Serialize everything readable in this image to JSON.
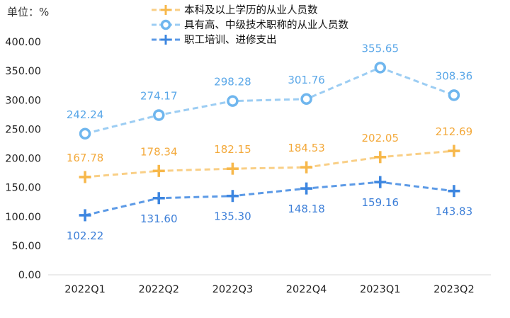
{
  "chart_data": {
    "type": "line",
    "unit_label": "单位：%",
    "categories": [
      "2022Q1",
      "2022Q2",
      "2022Q3",
      "2022Q4",
      "2023Q1",
      "2023Q2"
    ],
    "ylim": [
      0,
      400
    ],
    "yticks": [
      "0.00",
      "50.00",
      "100.00",
      "150.00",
      "200.00",
      "250.00",
      "300.00",
      "350.00",
      "400.00"
    ],
    "grid": false,
    "legend_position": "top-center",
    "series": [
      {
        "name": "本科及以上学历的从业人员数",
        "marker": "plus",
        "color": "#F7B84B",
        "line_color": "#F9CF86",
        "label_color": "#F3A93B",
        "label_position": "above",
        "values": [
          167.78,
          178.34,
          182.15,
          184.53,
          202.05,
          212.69
        ],
        "labels": [
          "167.78",
          "178.34",
          "182.15",
          "184.53",
          "202.05",
          "212.69"
        ]
      },
      {
        "name": "具有高、中级技术职称的从业人员数",
        "marker": "circle",
        "color": "#6FB6EE",
        "line_color": "#9CCDF3",
        "label_color": "#5AA7E8",
        "label_position": "above",
        "values": [
          242.24,
          274.17,
          298.28,
          301.76,
          355.65,
          308.36
        ],
        "labels": [
          "242.24",
          "274.17",
          "298.28",
          "301.76",
          "355.65",
          "308.36"
        ]
      },
      {
        "name": "职工培训、进修支出",
        "marker": "plus",
        "color": "#3D86E0",
        "line_color": "#5C9AE6",
        "label_color": "#3D7FD8",
        "label_position": "below",
        "values": [
          102.22,
          131.6,
          135.3,
          148.18,
          159.16,
          143.83
        ],
        "labels": [
          "102.22",
          "131.60",
          "135.30",
          "148.18",
          "159.16",
          "143.83"
        ]
      }
    ]
  }
}
